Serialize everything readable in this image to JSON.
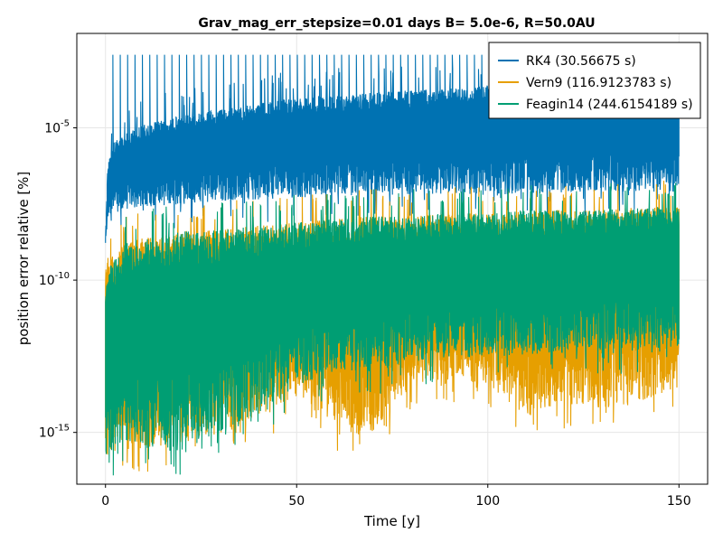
{
  "chart_data": {
    "type": "line",
    "title": "Grav_mag_err_stepsize=0.01 days B= 5.0e-6, R=50.0AU",
    "xlabel": "Time [y]",
    "ylabel": "position error relative [%]",
    "xlim": [
      -7.5,
      157.5
    ],
    "ylim_log10": [
      -16.7,
      -1.9
    ],
    "y_scale": "log",
    "grid": true,
    "legend_position": "top-right",
    "x_ticks": [
      {
        "value": 0,
        "label": "0"
      },
      {
        "value": 50,
        "label": "50"
      },
      {
        "value": 100,
        "label": "100"
      },
      {
        "value": 150,
        "label": "150"
      }
    ],
    "y_ticks": [
      {
        "exp": -5,
        "base": "10",
        "sup": "-5"
      },
      {
        "exp": -10,
        "base": "10",
        "sup": "-10"
      },
      {
        "exp": -15,
        "base": "10",
        "sup": "-15"
      }
    ],
    "series": [
      {
        "name": "RK4 (30.56675 s)",
        "color": "#0072B2",
        "x": [
          0,
          0.5,
          1,
          2,
          5,
          10,
          20,
          30,
          50,
          75,
          100,
          125,
          150
        ],
        "upper_log10": [
          -8.6,
          -6.5,
          -5.9,
          -5.5,
          -5.2,
          -4.9,
          -4.6,
          -4.4,
          -4.0,
          -3.8,
          -3.6,
          -3.5,
          -3.4
        ],
        "lower_log10": [
          -8.8,
          -8.2,
          -7.9,
          -7.8,
          -7.7,
          -7.6,
          -7.5,
          -7.4,
          -7.3,
          -7.2,
          -7.2,
          -7.1,
          -7.1
        ],
        "spike_peak_log10": -2.6
      },
      {
        "name": "Vern9 (116.9123783 s)",
        "color": "#E69F00",
        "x": [
          0,
          5,
          10,
          20,
          30,
          40,
          50,
          60,
          70,
          80,
          90,
          100,
          110,
          120,
          130,
          140,
          150
        ],
        "upper_log10": [
          -9.2,
          -8.8,
          -8.6,
          -8.4,
          -8.3,
          -8.2,
          -8.1,
          -8.0,
          -7.9,
          -7.9,
          -7.8,
          -7.8,
          -7.7,
          -7.7,
          -7.7,
          -7.6,
          -7.6
        ],
        "lower_log10": [
          -16.0,
          -15.3,
          -15.6,
          -15.2,
          -15.1,
          -14.6,
          -13.8,
          -14.8,
          -15.0,
          -13.4,
          -13.3,
          -13.4,
          -14.5,
          -14.1,
          -14.2,
          -14.0,
          -13.5
        ]
      },
      {
        "name": "Feagin14 (244.6154189 s)",
        "color": "#009E73",
        "x": [
          0,
          5,
          10,
          20,
          30,
          40,
          50,
          60,
          70,
          80,
          90,
          100,
          110,
          120,
          130,
          140,
          150
        ],
        "upper_log10": [
          -9.8,
          -8.8,
          -8.6,
          -8.4,
          -8.3,
          -8.2,
          -8.1,
          -8.0,
          -7.9,
          -7.9,
          -7.8,
          -7.8,
          -7.7,
          -7.7,
          -7.7,
          -7.6,
          -7.6
        ],
        "lower_log10": [
          -16.0,
          -15.3,
          -15.5,
          -15.6,
          -15.0,
          -14.3,
          -13.4,
          -13.1,
          -13.0,
          -12.7,
          -12.6,
          -12.5,
          -12.5,
          -12.4,
          -12.3,
          -12.3,
          -12.2
        ]
      }
    ]
  }
}
